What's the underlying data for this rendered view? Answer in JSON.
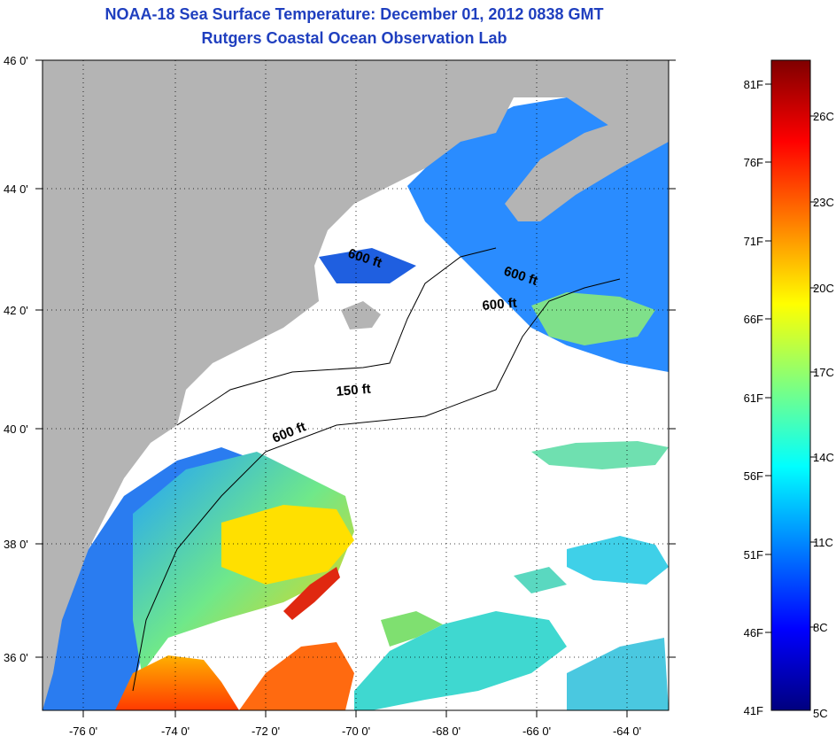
{
  "title": {
    "line1": "NOAA-18 Sea Surface Temperature:  December 01, 2012 0838 GMT",
    "line2": "Rutgers Coastal Ocean Observation Lab"
  },
  "map": {
    "lat_labels": [
      "46 0'",
      "44 0'",
      "42 0'",
      "40 0'",
      "38 0'",
      "36 0'"
    ],
    "lon_labels": [
      "-76 0'",
      "-74 0'",
      "-72 0'",
      "-70 0'",
      "-68 0'",
      "-66 0'",
      "-64 0'"
    ],
    "contour_labels": [
      "600 ft",
      "600 ft",
      "600 ft",
      "150 ft",
      "600 ft"
    ],
    "land_color": "#b4b4b4",
    "no_data_color": "#ffffff"
  },
  "colorbar": {
    "f_labels": [
      "81F",
      "76F",
      "71F",
      "66F",
      "61F",
      "56F",
      "51F",
      "46F",
      "41F"
    ],
    "c_labels": [
      "26C",
      "23C",
      "20C",
      "17C",
      "14C",
      "11C",
      "8C",
      "5C"
    ],
    "colors": [
      "#00007f",
      "#0000ff",
      "#007fff",
      "#00ffff",
      "#7fff7f",
      "#ffff00",
      "#ff7f00",
      "#ff0000",
      "#7f0000"
    ]
  }
}
